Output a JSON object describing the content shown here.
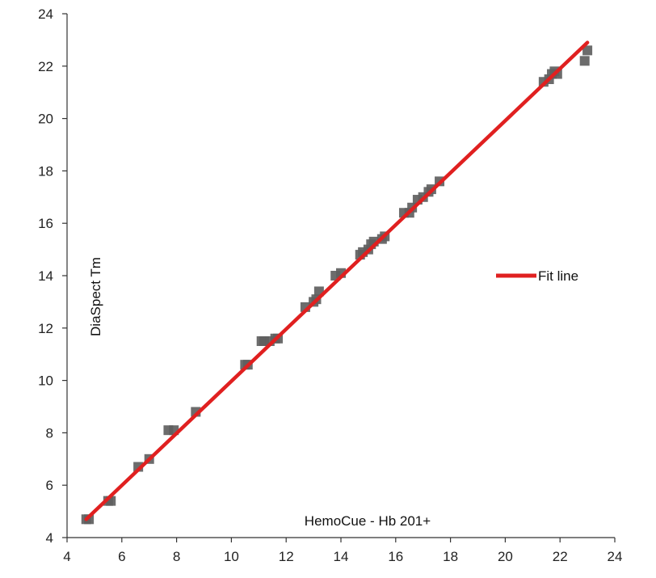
{
  "chart_data": {
    "type": "scatter",
    "xlabel": "HemoCue - Hb 201+",
    "ylabel": "DiaSpect Tm",
    "xlim": [
      4,
      24
    ],
    "ylim": [
      4,
      24
    ],
    "x_ticks": [
      "4",
      "6",
      "8",
      "10",
      "12",
      "14",
      "16",
      "18",
      "20",
      "22",
      "24"
    ],
    "y_ticks": [
      "4",
      "6",
      "8",
      "10",
      "12",
      "14",
      "16",
      "18",
      "20",
      "22",
      "24"
    ],
    "grid": false,
    "legend": {
      "placement": "right-middle",
      "entries": [
        "Fit line"
      ]
    },
    "colors": {
      "points": "#606060",
      "fit_line": "#e02020"
    },
    "series": [
      {
        "kind": "scatter",
        "x": [
          4.7,
          4.8,
          5.5,
          5.6,
          6.6,
          7.0,
          7.7,
          7.9,
          8.7,
          10.5,
          10.6,
          11.1,
          11.2,
          11.4,
          11.6,
          11.7,
          12.7,
          13.0,
          13.1,
          13.2,
          13.8,
          14.0,
          14.7,
          14.8,
          15.0,
          15.1,
          15.2,
          15.5,
          15.6,
          16.3,
          16.5,
          16.6,
          16.8,
          17.0,
          17.2,
          17.3,
          17.6,
          21.4,
          21.6,
          21.7,
          21.8,
          21.9,
          22.9,
          23.0
        ],
        "y": [
          4.7,
          4.7,
          5.4,
          5.4,
          6.7,
          7.0,
          8.1,
          8.1,
          8.8,
          10.6,
          10.6,
          11.5,
          11.5,
          11.5,
          11.6,
          11.6,
          12.8,
          13.0,
          13.1,
          13.4,
          14.0,
          14.1,
          14.8,
          14.9,
          15.0,
          15.2,
          15.3,
          15.4,
          15.5,
          16.4,
          16.4,
          16.6,
          16.9,
          17.0,
          17.2,
          17.3,
          17.6,
          21.4,
          21.5,
          21.7,
          21.8,
          21.7,
          22.2,
          22.6
        ]
      },
      {
        "kind": "line",
        "name": "Fit line",
        "x": [
          4.7,
          23.0
        ],
        "y": [
          4.7,
          22.9
        ]
      }
    ]
  }
}
